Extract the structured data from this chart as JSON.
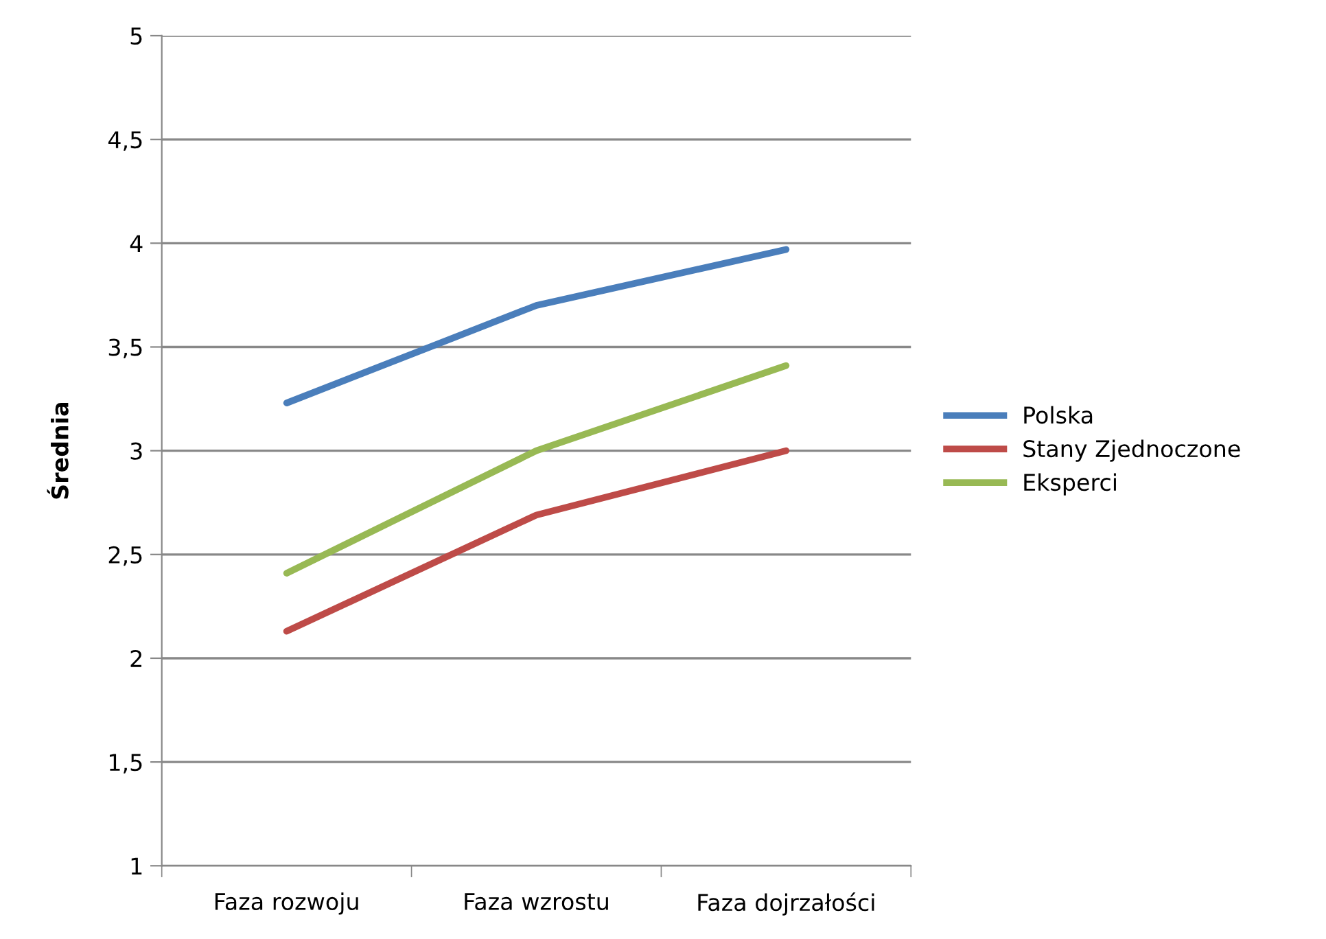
{
  "chart_data": {
    "type": "line",
    "ylabel": "Średnia",
    "categories": [
      "Faza rozwoju",
      "Faza wzrostu",
      "Faza dojrzałości"
    ],
    "series": [
      {
        "name": "Polska",
        "color": "#4a7ebb",
        "values": [
          3.23,
          3.7,
          3.97
        ]
      },
      {
        "name": "Stany Zjednoczone",
        "color": "#be4b48",
        "values": [
          2.13,
          2.69,
          3.0
        ]
      },
      {
        "name": "Eksperci",
        "color": "#98b954",
        "values": [
          2.41,
          3.0,
          3.41
        ]
      }
    ],
    "ylim": [
      1,
      5
    ],
    "yticks": [
      1,
      {
        "value": 1.5,
        "label": "1,5"
      },
      2,
      {
        "value": 2.5,
        "label": "2,5"
      },
      3,
      {
        "value": 3.5,
        "label": "3,5"
      },
      4,
      {
        "value": 4.5,
        "label": "4,5"
      },
      5
    ],
    "grid": "y",
    "legend": "right",
    "marker": "none",
    "line_style": "solid"
  }
}
